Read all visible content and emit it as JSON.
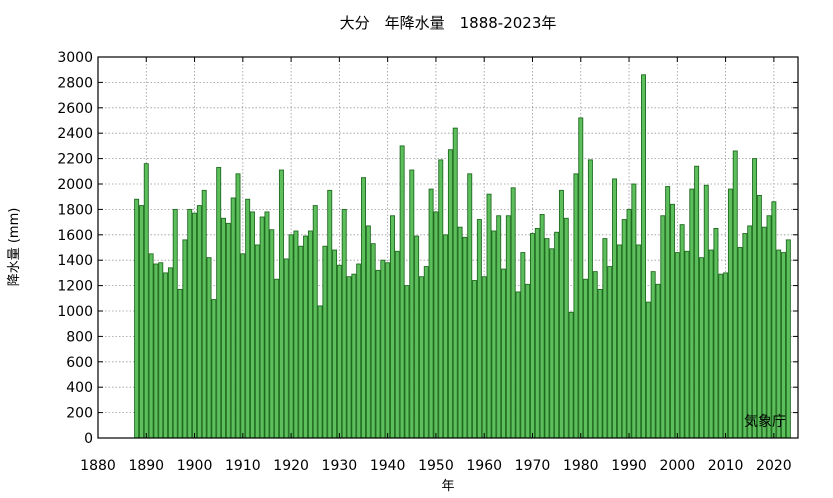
{
  "chart_data": {
    "type": "bar",
    "title": "大分　年降水量　1888-2023年",
    "xlabel": "年",
    "ylabel": "降水量 (mm)",
    "credit": "気象庁",
    "xlim": [
      1880,
      2025
    ],
    "ylim": [
      0,
      3000
    ],
    "xticks": [
      1880,
      1890,
      1900,
      1910,
      1920,
      1930,
      1940,
      1950,
      1960,
      1970,
      1980,
      1990,
      2000,
      2010,
      2020
    ],
    "yticks": [
      0,
      200,
      400,
      600,
      800,
      1000,
      1200,
      1400,
      1600,
      1800,
      2000,
      2200,
      2400,
      2600,
      2800,
      3000
    ],
    "grid": true,
    "bar_color": "#5cbf5c",
    "bar_edge_color": "#1f6b1f",
    "x": [
      1888,
      1889,
      1890,
      1891,
      1892,
      1893,
      1894,
      1895,
      1896,
      1897,
      1898,
      1899,
      1900,
      1901,
      1902,
      1903,
      1904,
      1905,
      1906,
      1907,
      1908,
      1909,
      1910,
      1911,
      1912,
      1913,
      1914,
      1915,
      1916,
      1917,
      1918,
      1919,
      1920,
      1921,
      1922,
      1923,
      1924,
      1925,
      1926,
      1927,
      1928,
      1929,
      1930,
      1931,
      1932,
      1933,
      1934,
      1935,
      1936,
      1937,
      1938,
      1939,
      1940,
      1941,
      1942,
      1943,
      1944,
      1945,
      1946,
      1947,
      1948,
      1949,
      1950,
      1951,
      1952,
      1953,
      1954,
      1955,
      1956,
      1957,
      1958,
      1959,
      1960,
      1961,
      1962,
      1963,
      1964,
      1965,
      1966,
      1967,
      1968,
      1969,
      1970,
      1971,
      1972,
      1973,
      1974,
      1975,
      1976,
      1977,
      1978,
      1979,
      1980,
      1981,
      1982,
      1983,
      1984,
      1985,
      1986,
      1987,
      1988,
      1989,
      1990,
      1991,
      1992,
      1993,
      1994,
      1995,
      1996,
      1997,
      1998,
      1999,
      2000,
      2001,
      2002,
      2003,
      2004,
      2005,
      2006,
      2007,
      2008,
      2009,
      2010,
      2011,
      2012,
      2013,
      2014,
      2015,
      2016,
      2017,
      2018,
      2019,
      2020,
      2021,
      2022,
      2023
    ],
    "values": [
      1880,
      1830,
      2160,
      1450,
      1370,
      1380,
      1300,
      1340,
      1800,
      1170,
      1560,
      1800,
      1770,
      1830,
      1950,
      1420,
      1090,
      2130,
      1730,
      1690,
      1890,
      2080,
      1450,
      1880,
      1780,
      1520,
      1740,
      1780,
      1640,
      1250,
      2110,
      1410,
      1600,
      1630,
      1510,
      1590,
      1630,
      1830,
      1040,
      1510,
      1950,
      1480,
      1360,
      1800,
      1270,
      1290,
      1370,
      2050,
      1670,
      1530,
      1320,
      1400,
      1380,
      1750,
      1470,
      2300,
      1200,
      2110,
      1590,
      1270,
      1350,
      1960,
      1780,
      2190,
      1600,
      2270,
      2440,
      1660,
      1580,
      2080,
      1240,
      1720,
      1270,
      1920,
      1630,
      1750,
      1330,
      1750,
      1970,
      1150,
      1460,
      1210,
      1610,
      1650,
      1760,
      1570,
      1490,
      1620,
      1950,
      1730,
      990,
      2080,
      2520,
      1250,
      2190,
      1310,
      1170,
      1570,
      1350,
      2040,
      1520,
      1720,
      1800,
      2000,
      1520,
      2860,
      1070,
      1310,
      1210,
      1750,
      1980,
      1840,
      1460,
      1680,
      1470,
      1960,
      2140,
      1420,
      1990,
      1480,
      1650,
      1290,
      1300,
      1960,
      2260,
      1500,
      1610,
      1670,
      2200,
      1910,
      1660,
      1750,
      1860,
      1480,
      1460,
      1560
    ]
  }
}
